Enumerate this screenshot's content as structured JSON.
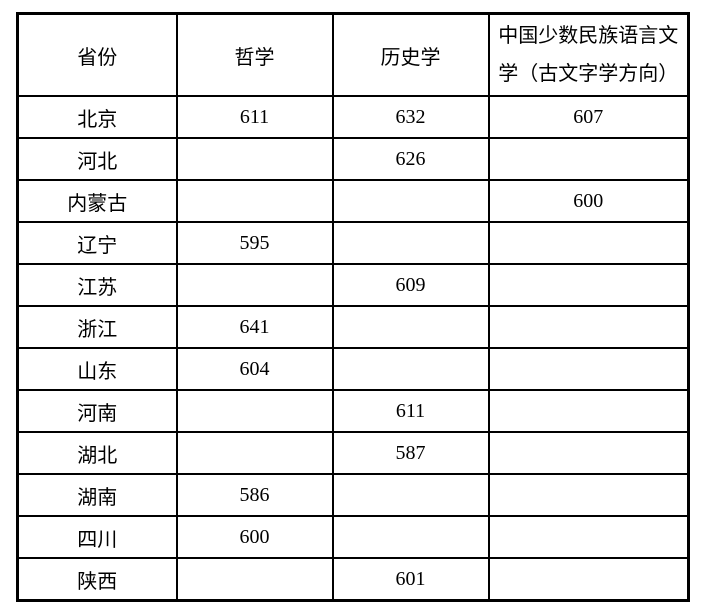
{
  "colors": {
    "background": "#ffffff",
    "border": "#000000",
    "text": "#000000"
  },
  "table": {
    "columns": [
      {
        "key": "province",
        "label": "省份"
      },
      {
        "key": "philosophy",
        "label": "哲学"
      },
      {
        "key": "history",
        "label": "历史学"
      },
      {
        "key": "minority",
        "label": "中国少数民族语言文学（古文字学方向）"
      }
    ],
    "rows": [
      {
        "province": "北京",
        "philosophy": "611",
        "history": "632",
        "minority": "607"
      },
      {
        "province": "河北",
        "philosophy": "",
        "history": "626",
        "minority": ""
      },
      {
        "province": "内蒙古",
        "philosophy": "",
        "history": "",
        "minority": "600"
      },
      {
        "province": "辽宁",
        "philosophy": "595",
        "history": "",
        "minority": ""
      },
      {
        "province": "江苏",
        "philosophy": "",
        "history": "609",
        "minority": ""
      },
      {
        "province": "浙江",
        "philosophy": "641",
        "history": "",
        "minority": ""
      },
      {
        "province": "山东",
        "philosophy": "604",
        "history": "",
        "minority": ""
      },
      {
        "province": "河南",
        "philosophy": "",
        "history": "611",
        "minority": ""
      },
      {
        "province": "湖北",
        "philosophy": "",
        "history": "587",
        "minority": ""
      },
      {
        "province": "湖南",
        "philosophy": "586",
        "history": "",
        "minority": ""
      },
      {
        "province": "四川",
        "philosophy": "600",
        "history": "",
        "minority": ""
      },
      {
        "province": "陕西",
        "philosophy": "",
        "history": "601",
        "minority": ""
      }
    ]
  }
}
